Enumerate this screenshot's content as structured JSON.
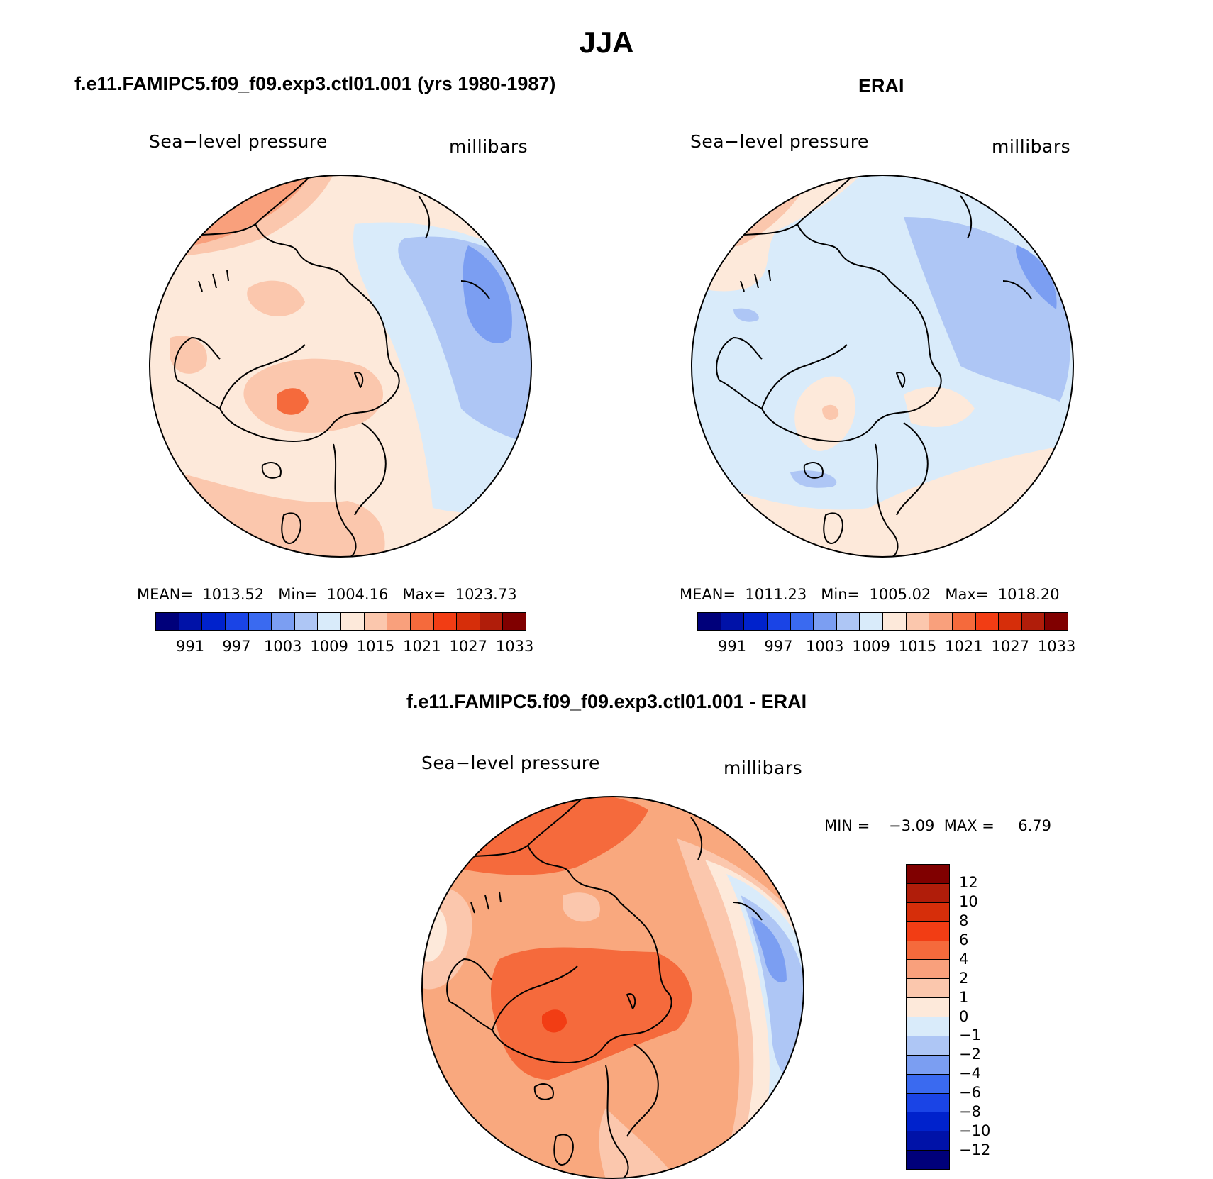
{
  "title": "JJA",
  "panels": [
    {
      "title": "f.e11.FAMIPC5.f09_f09.exp3.ctl01.001 (yrs 1980-1987)",
      "left_label": "Sea−level pressure",
      "right_label": "millibars",
      "stats": "MEAN=  1013.52   Min=  1004.16   Max=  1023.73",
      "stats_values": {
        "mean": 1013.52,
        "min": 1004.16,
        "max": 1023.73
      },
      "background": "#fde9da"
    },
    {
      "title": "ERAI",
      "left_label": "Sea−level pressure",
      "right_label": "millibars",
      "stats": "MEAN=  1011.23   Min=  1005.02   Max=  1018.20",
      "stats_values": {
        "mean": 1011.23,
        "min": 1005.02,
        "max": 1018.2
      },
      "background": "#d9ebfa"
    },
    {
      "title": "f.e11.FAMIPC5.f09_f09.exp3.ctl01.001 - ERAI",
      "left_label": "Sea−level pressure",
      "right_label": "millibars",
      "stats": "MIN =    −3.09  MAX =     6.79",
      "stats_values": {
        "min": -3.09,
        "max": 6.79
      },
      "background": "#f9a87e"
    }
  ],
  "colorbar_abs": {
    "colors": [
      "#00007a",
      "#0012a8",
      "#0022cc",
      "#1a44e6",
      "#3a6af0",
      "#7b9ef2",
      "#aec6f5",
      "#d9ebfa",
      "#fde9da",
      "#fbc7ad",
      "#f9a07c",
      "#f56a3c",
      "#f23d14",
      "#d62e0a",
      "#b01d0a",
      "#800000"
    ],
    "tick_labels": [
      "991",
      "997",
      "1003",
      "1009",
      "1015",
      "1021",
      "1027",
      "1033"
    ]
  },
  "colorbar_diff": {
    "colors": [
      "#800000",
      "#b01d0a",
      "#d62e0a",
      "#f23d14",
      "#f56a3c",
      "#f9a07c",
      "#fbc7ad",
      "#fde9da",
      "#d9ebfa",
      "#aec6f5",
      "#7b9ef2",
      "#3a6af0",
      "#1a44e6",
      "#0022cc",
      "#0012a8",
      "#00007a"
    ],
    "tick_labels": [
      "12",
      "10",
      "8",
      "6",
      "4",
      "2",
      "1",
      "0",
      "−1",
      "−2",
      "−4",
      "−6",
      "−8",
      "−10",
      "−12"
    ]
  },
  "legend_colors": {
    "coast": "#000000"
  }
}
